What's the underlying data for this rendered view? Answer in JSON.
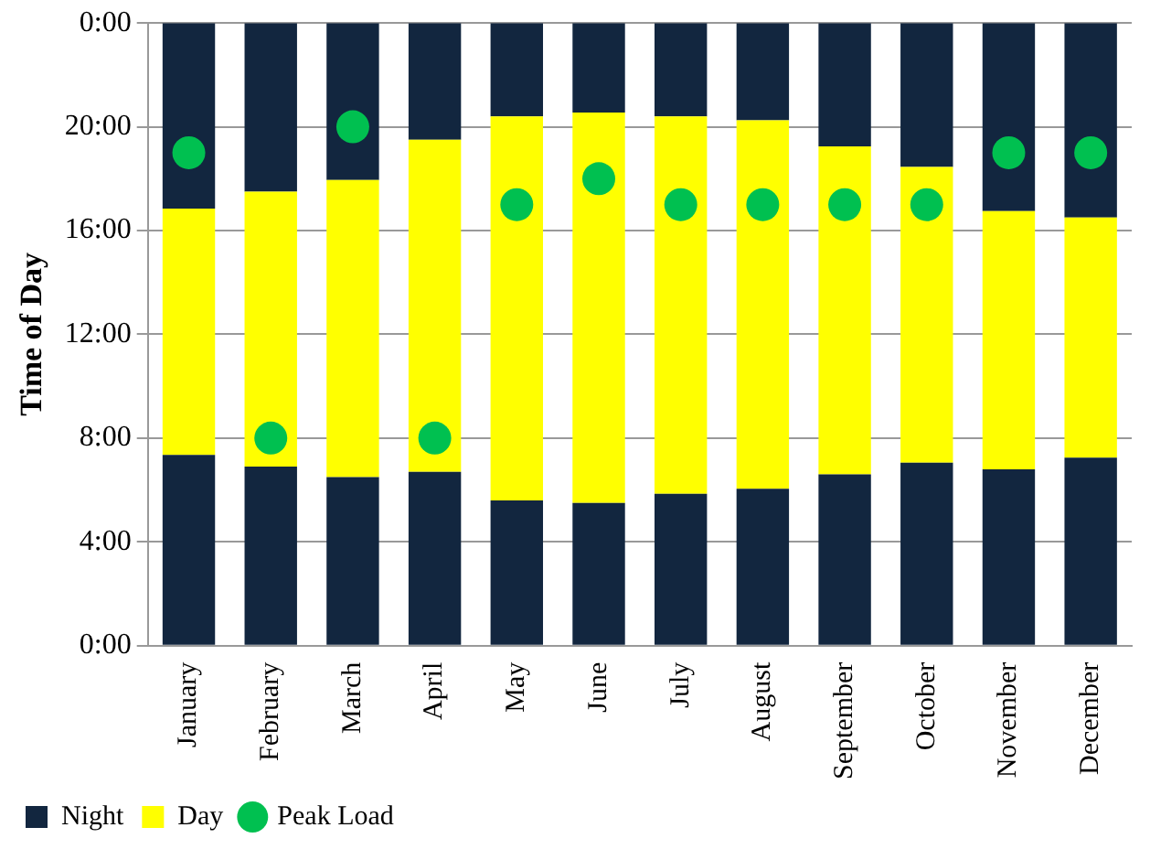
{
  "chart_data": {
    "type": "bar",
    "stacked": true,
    "ylabel": "Time of Day",
    "categories": [
      "January",
      "February",
      "March",
      "April",
      "May",
      "June",
      "July",
      "August",
      "September",
      "October",
      "November",
      "December"
    ],
    "series": [
      {
        "name": "Night",
        "color": "#12263f",
        "values": [
          7.35,
          6.9,
          6.5,
          6.7,
          5.6,
          5.5,
          5.85,
          6.05,
          6.6,
          7.05,
          6.8,
          7.25
        ]
      },
      {
        "name": "Day",
        "color": "#ffff00",
        "values": [
          9.5,
          10.6,
          11.45,
          12.8,
          14.8,
          15.05,
          14.55,
          14.2,
          12.65,
          11.4,
          9.95,
          9.25
        ]
      },
      {
        "color": "#12263f",
        "values": [
          7.15,
          6.5,
          6.05,
          4.5,
          3.6,
          3.45,
          3.6,
          3.75,
          4.75,
          5.55,
          7.25,
          7.5
        ]
      },
      {
        "name": "Peak Load",
        "type": "scatter",
        "marker": "circle",
        "color": "#00c050",
        "x": [
          "January",
          "February",
          "March",
          "April",
          "May",
          "June",
          "July",
          "August",
          "September",
          "October",
          "November",
          "December"
        ],
        "values": [
          19,
          8,
          20,
          8,
          17,
          18,
          17,
          17,
          17,
          17,
          19,
          19
        ]
      }
    ],
    "ylim": [
      0,
      24
    ],
    "yticks": [
      {
        "value": 0,
        "label": "0:00"
      },
      {
        "value": 4,
        "label": "4:00"
      },
      {
        "value": 8,
        "label": "8:00"
      },
      {
        "value": 12,
        "label": "12:00"
      },
      {
        "value": 16,
        "label": "16:00"
      },
      {
        "value": 20,
        "label": "20:00"
      },
      {
        "value": 24,
        "label": "0:00"
      }
    ],
    "grid": "y",
    "legend": "bottom left"
  }
}
